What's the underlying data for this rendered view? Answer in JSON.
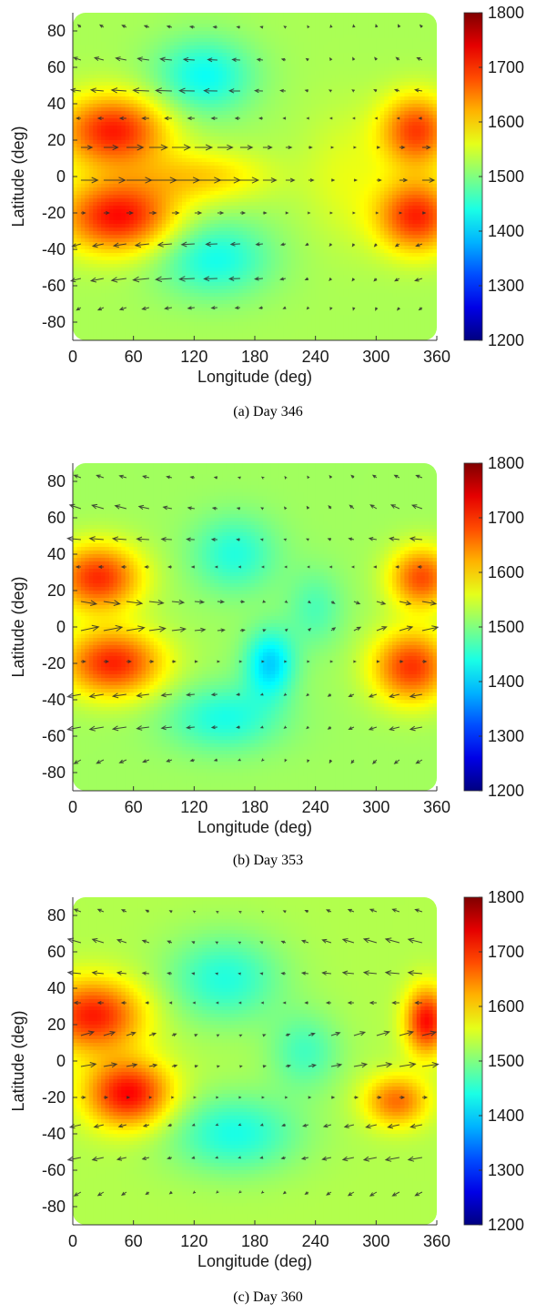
{
  "chart_data": [
    {
      "type": "heatmap",
      "caption": "(a) Day 346",
      "xlabel": "Longitude (deg)",
      "ylabel": "Latitude (deg)",
      "xlim": [
        0,
        360
      ],
      "ylim": [
        -90,
        90
      ],
      "xticks": [
        0,
        60,
        120,
        180,
        240,
        300,
        360
      ],
      "yticks": [
        80,
        60,
        40,
        20,
        0,
        -20,
        -40,
        -60,
        -80
      ],
      "colorbar": {
        "min": 1200,
        "max": 1800,
        "ticks": [
          1800,
          1700,
          1600,
          1500,
          1400,
          1300,
          1200
        ],
        "colormap": "jet"
      },
      "background_value": 1525,
      "blobs": [
        {
          "lon": 40,
          "lat": 25,
          "value": 1710,
          "spread_lon": 75,
          "spread_lat": 14
        },
        {
          "lon": 45,
          "lat": -22,
          "value": 1720,
          "spread_lon": 80,
          "spread_lat": 14
        },
        {
          "lon": 340,
          "lat": 25,
          "value": 1690,
          "spread_lon": 50,
          "spread_lat": 14
        },
        {
          "lon": 340,
          "lat": -22,
          "value": 1705,
          "spread_lon": 55,
          "spread_lat": 14
        },
        {
          "lon": 130,
          "lat": 55,
          "value": 1430,
          "spread_lon": 70,
          "spread_lat": 15
        },
        {
          "lon": 140,
          "lat": -45,
          "value": 1435,
          "spread_lon": 80,
          "spread_lat": 15
        },
        {
          "lon": 130,
          "lat": 0,
          "value": 1600,
          "spread_lon": 90,
          "spread_lat": 10
        },
        {
          "lon": 270,
          "lat": 0,
          "value": 1560,
          "spread_lon": 60,
          "spread_lat": 25
        }
      ],
      "wind_rows": [
        {
          "lat": 82,
          "u": -2,
          "v": 1
        },
        {
          "lat": 64,
          "u": -5,
          "v": 1
        },
        {
          "lat": 47,
          "u": -7,
          "v": 0.5
        },
        {
          "lat": 32,
          "u": -3,
          "v": 0
        },
        {
          "lat": 16,
          "u": 8,
          "v": 0
        },
        {
          "lat": -2,
          "u": 12,
          "v": 0
        },
        {
          "lat": -20,
          "u": 3,
          "v": 0
        },
        {
          "lat": -37,
          "u": -6,
          "v": -1
        },
        {
          "lat": -56,
          "u": -7,
          "v": -1
        },
        {
          "lat": -72,
          "u": -3,
          "v": -1
        }
      ]
    },
    {
      "type": "heatmap",
      "caption": "(b) Day 353",
      "xlabel": "Longitude (deg)",
      "ylabel": "Latitude (deg)",
      "xlim": [
        0,
        360
      ],
      "ylim": [
        -90,
        90
      ],
      "xticks": [
        0,
        60,
        120,
        180,
        240,
        300,
        360
      ],
      "yticks": [
        80,
        60,
        40,
        20,
        0,
        -20,
        -40,
        -60,
        -80
      ],
      "colorbar": {
        "min": 1200,
        "max": 1800,
        "ticks": [
          1800,
          1700,
          1600,
          1500,
          1400,
          1300,
          1200
        ],
        "colormap": "jet"
      },
      "background_value": 1520,
      "blobs": [
        {
          "lon": 25,
          "lat": 27,
          "value": 1700,
          "spread_lon": 60,
          "spread_lat": 13
        },
        {
          "lon": 40,
          "lat": -20,
          "value": 1705,
          "spread_lon": 70,
          "spread_lat": 13
        },
        {
          "lon": 345,
          "lat": 27,
          "value": 1680,
          "spread_lon": 45,
          "spread_lat": 12
        },
        {
          "lon": 335,
          "lat": -22,
          "value": 1695,
          "spread_lon": 55,
          "spread_lat": 14
        },
        {
          "lon": 195,
          "lat": -20,
          "value": 1400,
          "spread_lon": 35,
          "spread_lat": 13
        },
        {
          "lon": 160,
          "lat": 40,
          "value": 1445,
          "spread_lon": 60,
          "spread_lat": 15
        },
        {
          "lon": 150,
          "lat": -50,
          "value": 1440,
          "spread_lon": 80,
          "spread_lat": 13
        },
        {
          "lon": 240,
          "lat": 10,
          "value": 1470,
          "spread_lon": 40,
          "spread_lat": 15
        }
      ],
      "wind_rows": [
        {
          "lat": 82,
          "u": -3,
          "v": 1
        },
        {
          "lat": 65,
          "u": -5,
          "v": 1.5
        },
        {
          "lat": 48,
          "u": -6,
          "v": 0.5
        },
        {
          "lat": 33,
          "u": -2,
          "v": 0
        },
        {
          "lat": 14,
          "u": 7,
          "v": -1
        },
        {
          "lat": -2,
          "u": 8,
          "v": 1.5
        },
        {
          "lat": -19,
          "u": 2,
          "v": 0
        },
        {
          "lat": -37,
          "u": -6,
          "v": -1
        },
        {
          "lat": -55,
          "u": -6,
          "v": -1
        },
        {
          "lat": -73,
          "u": -3,
          "v": -1.5
        }
      ]
    },
    {
      "type": "heatmap",
      "caption": "(c) Day 360",
      "xlabel": "Longitude (deg)",
      "ylabel": "Latitude (deg)",
      "xlim": [
        0,
        360
      ],
      "ylim": [
        -90,
        90
      ],
      "xticks": [
        0,
        60,
        120,
        180,
        240,
        300,
        360
      ],
      "yticks": [
        80,
        60,
        40,
        20,
        0,
        -20,
        -40,
        -60,
        -80
      ],
      "colorbar": {
        "min": 1200,
        "max": 1800,
        "ticks": [
          1800,
          1700,
          1600,
          1500,
          1400,
          1300,
          1200
        ],
        "colormap": "jet"
      },
      "background_value": 1530,
      "blobs": [
        {
          "lon": 20,
          "lat": 25,
          "value": 1710,
          "spread_lon": 70,
          "spread_lat": 14
        },
        {
          "lon": 55,
          "lat": -18,
          "value": 1725,
          "spread_lon": 60,
          "spread_lat": 13
        },
        {
          "lon": 350,
          "lat": 22,
          "value": 1720,
          "spread_lon": 30,
          "spread_lat": 13
        },
        {
          "lon": 320,
          "lat": -22,
          "value": 1660,
          "spread_lon": 45,
          "spread_lat": 10
        },
        {
          "lon": 150,
          "lat": 45,
          "value": 1445,
          "spread_lon": 80,
          "spread_lat": 17
        },
        {
          "lon": 160,
          "lat": -40,
          "value": 1440,
          "spread_lon": 90,
          "spread_lat": 15
        },
        {
          "lon": 230,
          "lat": 5,
          "value": 1465,
          "spread_lon": 50,
          "spread_lat": 15
        }
      ],
      "wind_rows": [
        {
          "lat": 82,
          "u": -3,
          "v": 1
        },
        {
          "lat": 65,
          "u": -6,
          "v": 1.5
        },
        {
          "lat": 48,
          "u": -6,
          "v": 0.5
        },
        {
          "lat": 32,
          "u": -3,
          "v": 0
        },
        {
          "lat": 14,
          "u": 6,
          "v": 1.5
        },
        {
          "lat": -3,
          "u": 7,
          "v": 1
        },
        {
          "lat": -20,
          "u": 2,
          "v": 0
        },
        {
          "lat": -35,
          "u": -5,
          "v": -1
        },
        {
          "lat": -53,
          "u": -6,
          "v": -1
        },
        {
          "lat": -72,
          "u": -3,
          "v": -1.5
        }
      ]
    }
  ]
}
